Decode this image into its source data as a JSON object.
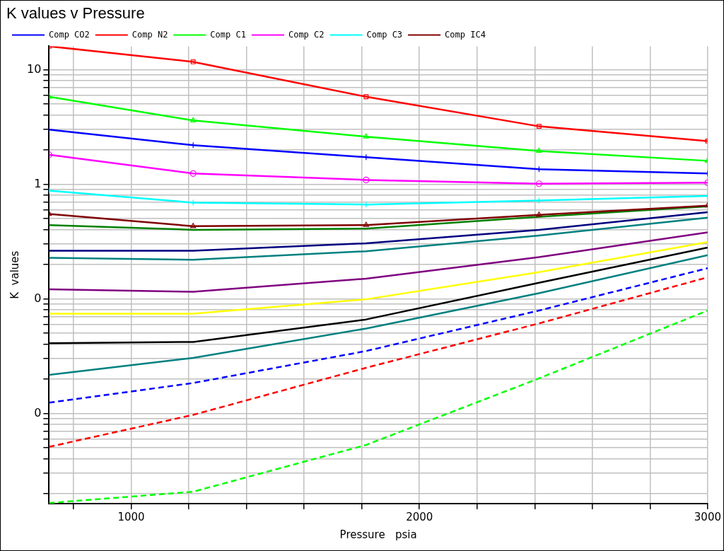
{
  "chart_data": {
    "type": "line",
    "title": "K values v Pressure",
    "xlabel": "Pressure   psia",
    "ylabel": "K  values",
    "x": [
      715,
      1215,
      1815,
      2415,
      3000
    ],
    "xlim": [
      715,
      3000
    ],
    "xticks": [
      {
        "value": 800,
        "label": null
      },
      1000,
      {
        "value": 1200,
        "label": null
      },
      {
        "value": 1400,
        "label": null
      },
      {
        "value": 1600,
        "label": null
      },
      {
        "value": 1800,
        "label": null
      },
      2000,
      {
        "value": 2200,
        "label": null
      },
      {
        "value": 2400,
        "label": null
      },
      {
        "value": 2600,
        "label": null
      },
      {
        "value": 2800,
        "label": null
      },
      3000
    ],
    "log": "y",
    "ylim": [
      0.00163,
      16
    ],
    "yticks": [
      {
        "value": 0.002,
        "label": null
      },
      {
        "value": 0.003,
        "label": null
      },
      {
        "value": 0.004,
        "label": null
      },
      {
        "value": 0.005,
        "label": null
      },
      {
        "value": 0.006,
        "label": null
      },
      {
        "value": 0.007,
        "label": null
      },
      {
        "value": 0.008,
        "label": null
      },
      {
        "value": 0.009,
        "label": null
      },
      {
        "value": 0.01,
        "label": "0"
      },
      {
        "value": 0.02,
        "label": null
      },
      {
        "value": 0.03,
        "label": null
      },
      {
        "value": 0.04,
        "label": null
      },
      {
        "value": 0.05,
        "label": null
      },
      {
        "value": 0.06,
        "label": null
      },
      {
        "value": 0.07,
        "label": null
      },
      {
        "value": 0.08,
        "label": null
      },
      {
        "value": 0.09,
        "label": null
      },
      {
        "value": 0.1,
        "label": "0"
      },
      {
        "value": 0.2,
        "label": null
      },
      {
        "value": 0.3,
        "label": null
      },
      {
        "value": 0.4,
        "label": null
      },
      {
        "value": 0.5,
        "label": null
      },
      {
        "value": 0.6,
        "label": null
      },
      {
        "value": 0.7,
        "label": null
      },
      {
        "value": 0.8,
        "label": null
      },
      {
        "value": 0.9,
        "label": null
      },
      1,
      {
        "value": 2,
        "label": null
      },
      {
        "value": 3,
        "label": null
      },
      {
        "value": 4,
        "label": null
      },
      {
        "value": 5,
        "label": null
      },
      {
        "value": 6,
        "label": null
      },
      {
        "value": 7,
        "label": null
      },
      {
        "value": 8,
        "label": null
      },
      {
        "value": 9,
        "label": null
      },
      10
    ],
    "grid": true,
    "legend": "top left",
    "line_style": "solid",
    "series": [
      {
        "name": "Comp CO2",
        "color": "#0000ff",
        "marker": "cross",
        "values": [
          3.0,
          2.19,
          1.72,
          1.35,
          1.24
        ]
      },
      {
        "name": "Comp N2",
        "color": "#ff0000",
        "marker": "square",
        "values": [
          16.0,
          11.7,
          5.8,
          3.2,
          2.38
        ]
      },
      {
        "name": "Comp C1",
        "color": "#00ff00",
        "marker": "triangle",
        "values": [
          5.8,
          3.6,
          2.6,
          1.95,
          1.6
        ]
      },
      {
        "name": "Comp C2",
        "color": "#ff00ff",
        "marker": "circle",
        "values": [
          1.81,
          1.24,
          1.09,
          1.01,
          1.03
        ]
      },
      {
        "name": "Comp C3",
        "color": "#00ffff",
        "marker": "cross",
        "values": [
          0.88,
          0.69,
          0.665,
          0.72,
          0.79
        ]
      },
      {
        "name": "Comp IC4",
        "color": "#800000",
        "marker": "triangle",
        "values": [
          0.55,
          0.43,
          0.44,
          0.54,
          0.65
        ]
      },
      {
        "color": "#008000",
        "marker": "none",
        "values": [
          0.44,
          0.4,
          0.41,
          0.52,
          0.64
        ]
      },
      {
        "color": "#000080",
        "marker": "none",
        "values": [
          0.263,
          0.263,
          0.305,
          0.4,
          0.57
        ]
      },
      {
        "color": "#008080",
        "marker": "none",
        "values": [
          0.228,
          0.219,
          0.26,
          0.357,
          0.51
        ]
      },
      {
        "color": "#800080",
        "marker": "none",
        "values": [
          0.121,
          0.115,
          0.15,
          0.231,
          0.38
        ]
      },
      {
        "color": "#ffff00",
        "marker": "none",
        "values": [
          0.074,
          0.074,
          0.099,
          0.171,
          0.313
        ]
      },
      {
        "color": "#000000",
        "marker": "none",
        "values": [
          0.041,
          0.042,
          0.066,
          0.138,
          0.28
        ]
      },
      {
        "color": "#008080",
        "marker": "none",
        "values": [
          0.0217,
          0.0305,
          0.055,
          0.112,
          0.24
        ]
      },
      {
        "color": "#0000ff",
        "marker": "none",
        "line_style": "dashed",
        "values": [
          0.0124,
          0.0184,
          0.035,
          0.079,
          0.185
        ]
      },
      {
        "color": "#ff0000",
        "marker": "none",
        "line_style": "dashed",
        "values": [
          0.0051,
          0.0097,
          0.025,
          0.061,
          0.154
        ]
      },
      {
        "color": "#00ff00",
        "marker": "none",
        "line_style": "dashed",
        "values": [
          0.00165,
          0.00207,
          0.0053,
          0.0202,
          0.079
        ]
      }
    ]
  }
}
